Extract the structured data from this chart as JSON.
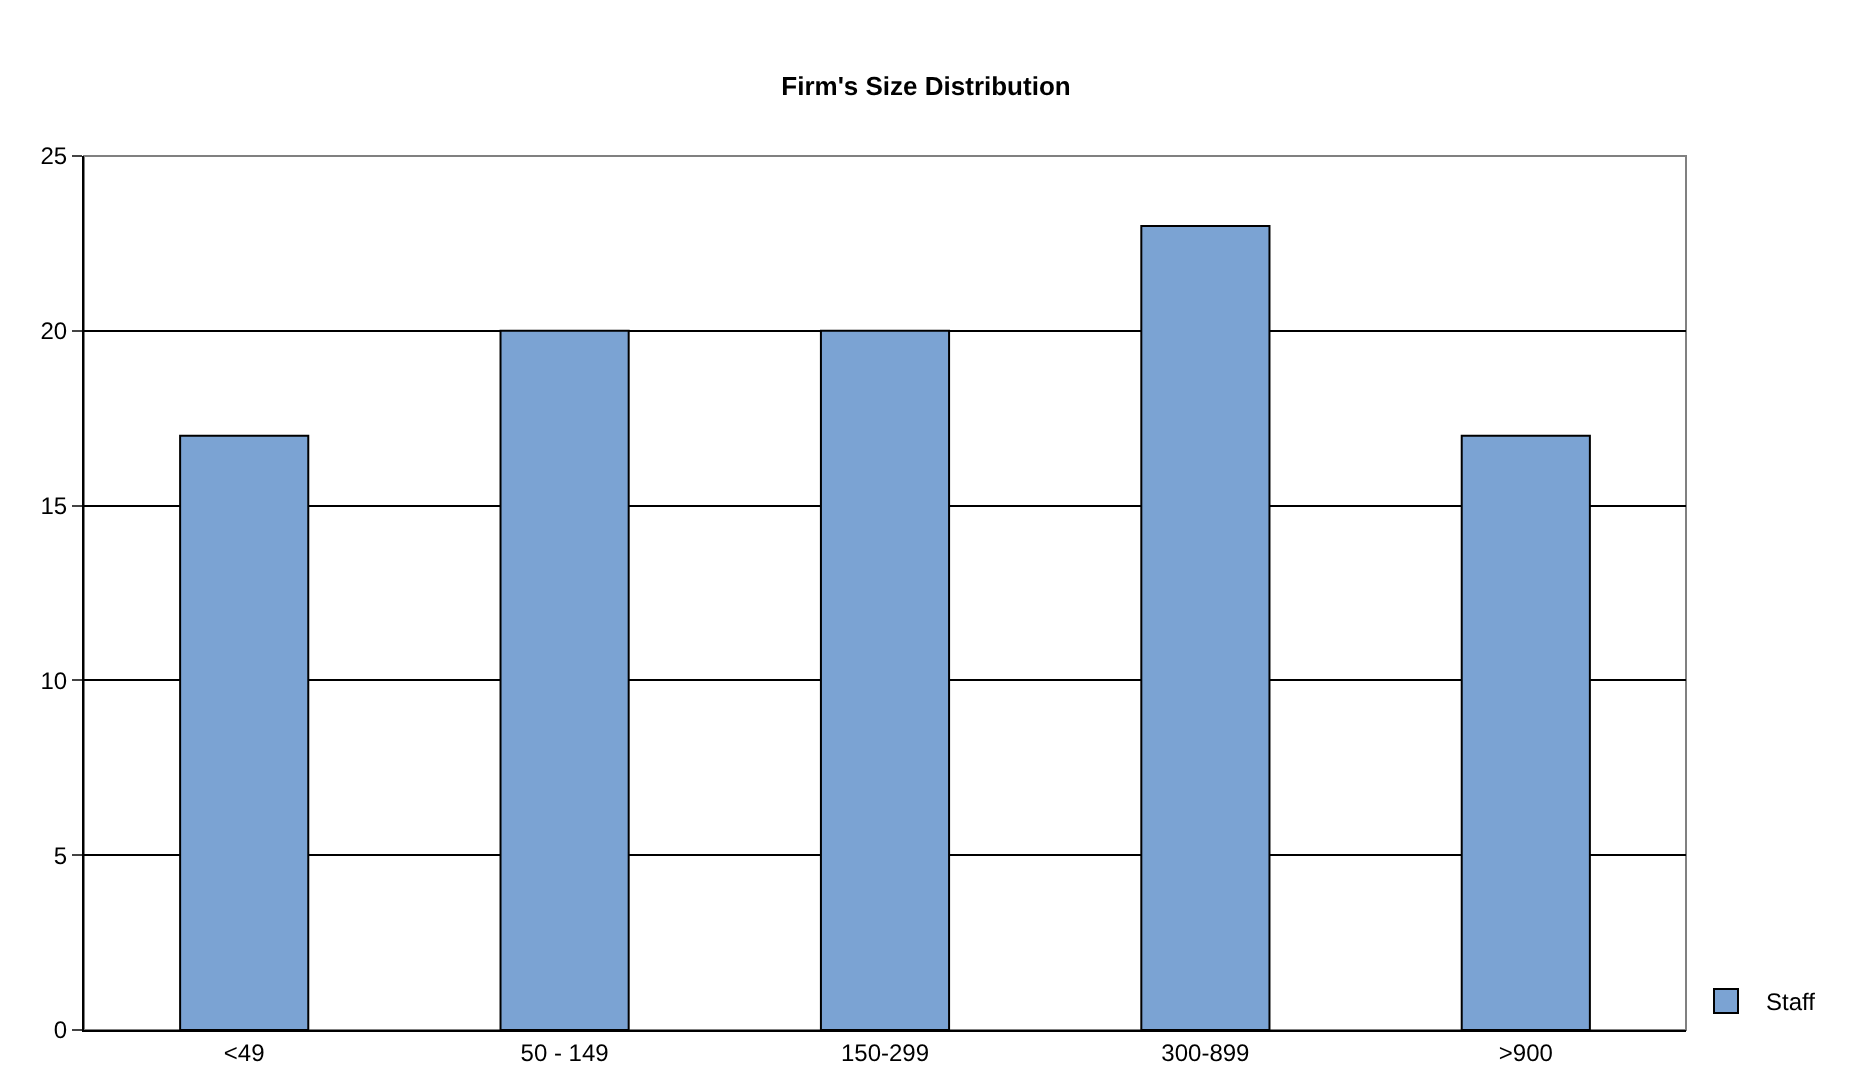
{
  "chart_data": {
    "type": "bar",
    "title": "Firm's Size Distribution",
    "categories": [
      "<49",
      "50 - 149",
      "150-299",
      "300-899",
      ">900"
    ],
    "series": [
      {
        "name": "Staff",
        "color": "#7ba3d3",
        "values": [
          17,
          20,
          20,
          23,
          17
        ]
      }
    ],
    "ylim": [
      0,
      25
    ],
    "yticks": [
      0,
      5,
      10,
      15,
      20,
      25
    ],
    "grid": "y",
    "legend": "bottom right"
  }
}
